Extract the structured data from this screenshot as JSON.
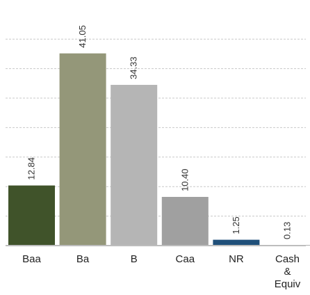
{
  "chart_data": {
    "type": "bar",
    "categories": [
      "Baa",
      "Ba",
      "B",
      "Caa",
      "NR",
      "Cash & Equiv"
    ],
    "category_label_lines": [
      [
        "Baa"
      ],
      [
        "Ba"
      ],
      [
        "B"
      ],
      [
        "Caa"
      ],
      [
        "NR"
      ],
      [
        "Cash",
        "&",
        "Equiv"
      ]
    ],
    "values": [
      12.84,
      41.05,
      34.33,
      10.4,
      1.25,
      0.13
    ],
    "value_labels": [
      "12.84",
      "41.05",
      "34.33",
      "10.40",
      "1.25",
      "0.13"
    ],
    "bar_colors": [
      "#40532a",
      "#949779",
      "#b5b5b5",
      "#a0a0a0",
      "#20507a",
      "#b0b0b0"
    ],
    "ylim": [
      0,
      47.25
    ],
    "grid_step": 6.3,
    "grid": true,
    "title": "",
    "xlabel": "",
    "ylabel": ""
  }
}
